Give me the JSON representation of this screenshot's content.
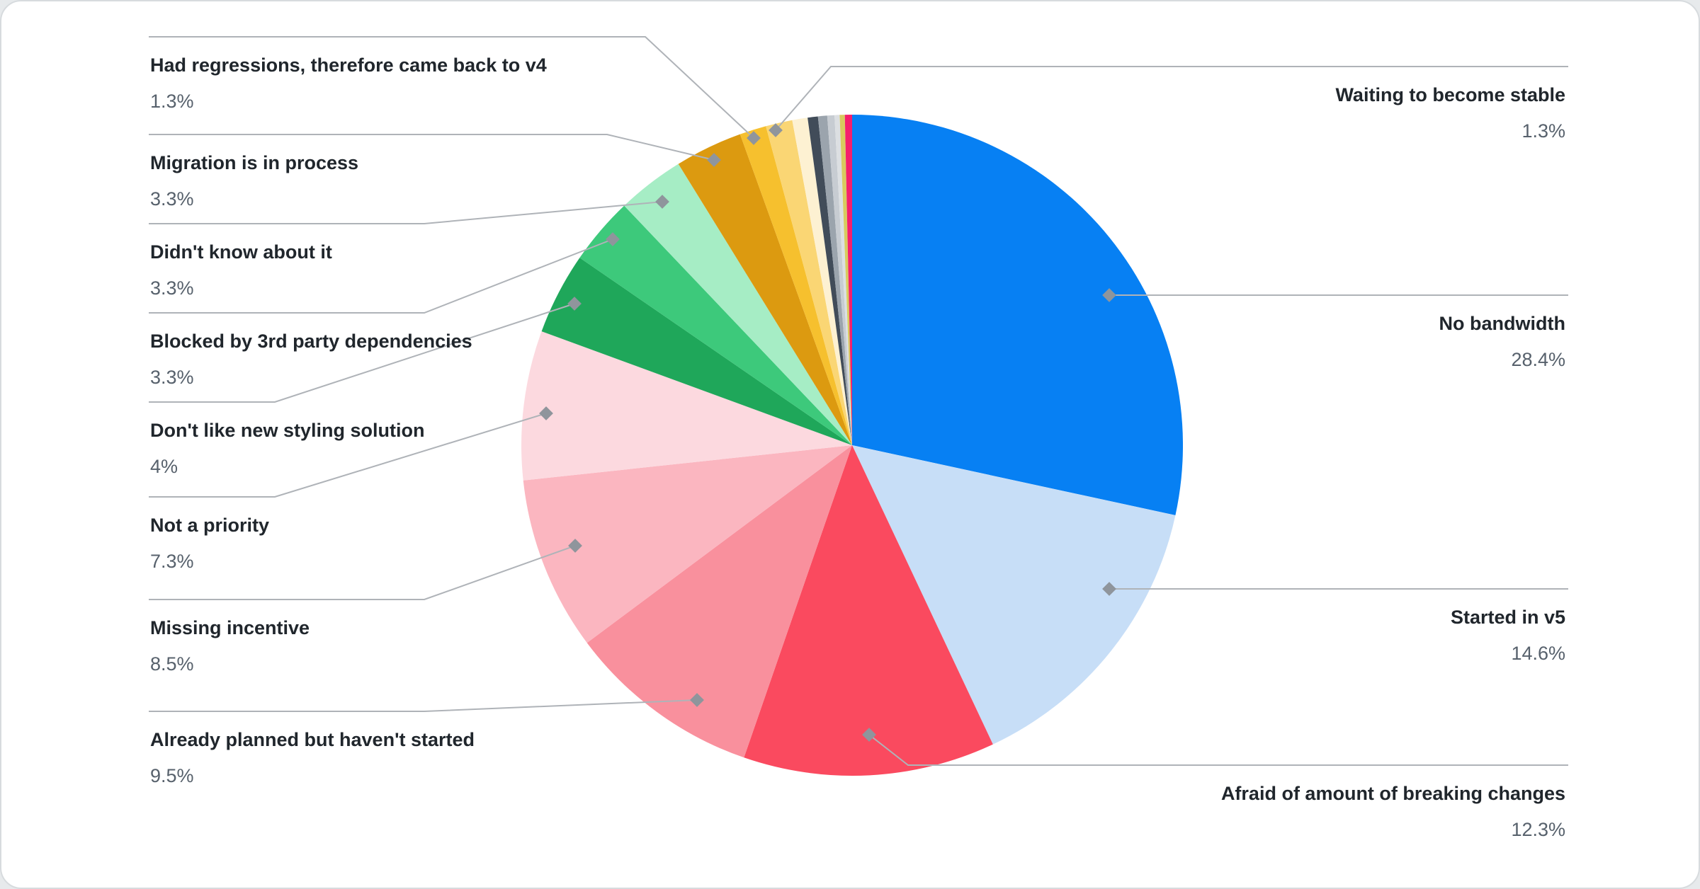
{
  "chart_data": {
    "type": "pie",
    "title": "",
    "unit": "%",
    "start_angle_deg": -90,
    "direction": "clockwise",
    "legend_position": "none",
    "slices": [
      {
        "label": "No bandwidth",
        "display": "28.4%",
        "value": 28.4,
        "color": "#0780F3",
        "labeled": true
      },
      {
        "label": "Started in v5",
        "display": "14.6%",
        "value": 14.6,
        "color": "#C7DEF7",
        "labeled": true
      },
      {
        "label": "Afraid of amount of breaking changes",
        "display": "12.3%",
        "value": 12.3,
        "color": "#FA4A5F",
        "labeled": true
      },
      {
        "label": "Already planned but haven't started",
        "display": "9.5%",
        "value": 9.5,
        "color": "#F9909D",
        "labeled": true
      },
      {
        "label": "Missing incentive",
        "display": "8.5%",
        "value": 8.5,
        "color": "#FBB6C0",
        "labeled": true
      },
      {
        "label": "Not a priority",
        "display": "7.3%",
        "value": 7.3,
        "color": "#FCD9DF",
        "labeled": true
      },
      {
        "label": "Don't like new styling solution",
        "display": "4%",
        "value": 4.0,
        "color": "#1FA75A",
        "labeled": true
      },
      {
        "label": "Blocked by 3rd party dependencies",
        "display": "3.3%",
        "value": 3.3,
        "color": "#3DC97B",
        "labeled": true
      },
      {
        "label": "Didn't know about it",
        "display": "3.3%",
        "value": 3.3,
        "color": "#A6EDC5",
        "labeled": true
      },
      {
        "label": "Migration is in process",
        "display": "3.3%",
        "value": 3.3,
        "color": "#DC9A10",
        "labeled": true
      },
      {
        "label": "Had regressions, therefore came back to v4",
        "display": "1.3%",
        "value": 1.3,
        "color": "#F6C02E",
        "labeled": true
      },
      {
        "label": "Waiting to become stable",
        "display": "1.3%",
        "value": 1.3,
        "color": "#FAD674",
        "labeled": true
      },
      {
        "label": "",
        "display": "",
        "value": 0.75,
        "color": "#FDF1D2",
        "labeled": false
      },
      {
        "label": "",
        "display": "",
        "value": 0.5,
        "color": "#414C59",
        "labeled": false
      },
      {
        "label": "",
        "display": "",
        "value": 0.45,
        "color": "#9BA4AD",
        "labeled": false
      },
      {
        "label": "",
        "display": "",
        "value": 0.35,
        "color": "#C7CCD2",
        "labeled": false
      },
      {
        "label": "",
        "display": "",
        "value": 0.25,
        "color": "#DCDFE2",
        "labeled": false
      },
      {
        "label": "",
        "display": "",
        "value": 0.25,
        "color": "#D8CB5E",
        "labeled": false
      },
      {
        "label": "",
        "display": "",
        "value": 0.35,
        "color": "#F51F6D",
        "labeled": false
      }
    ]
  },
  "styles": {
    "page_background": "#E7EAEC",
    "card_background": "#FFFFFF",
    "card_border": "#D7DBDE",
    "leader_line_color": "#AFB3B8",
    "marker_color": "#8F959C",
    "label_title_color": "#20262C",
    "label_value_color": "#57616C"
  }
}
